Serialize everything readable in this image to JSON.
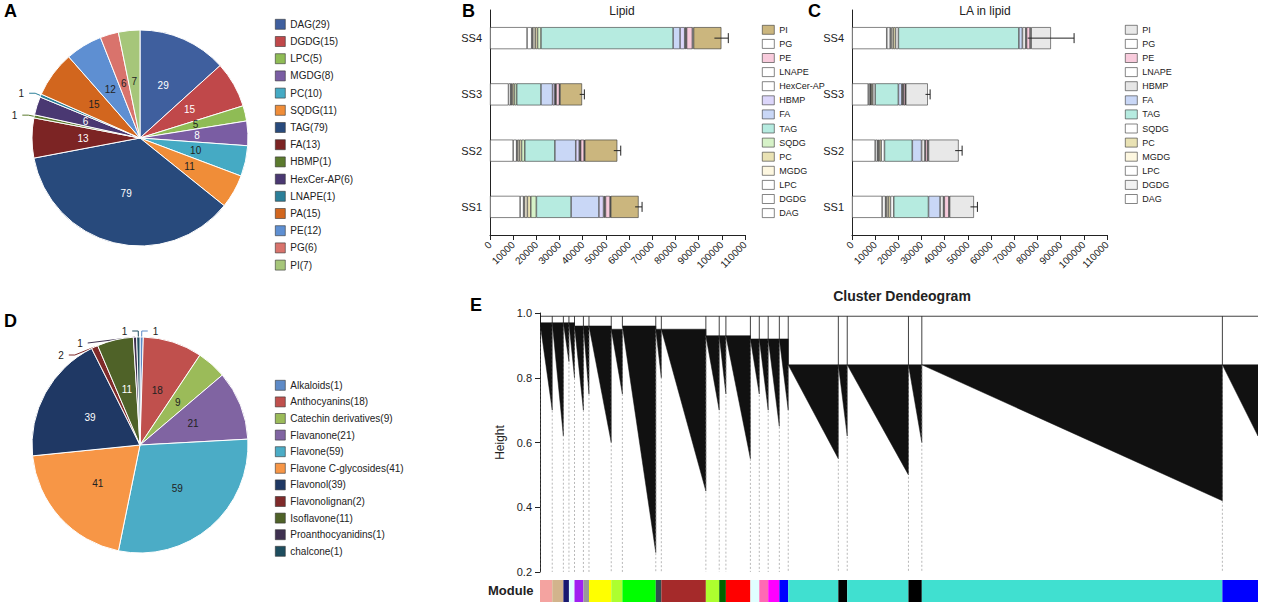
{
  "chart_data": [
    {
      "type": "pie",
      "panel_label": "A",
      "categories": [
        "DAG(29)",
        "DGDG(15)",
        "LPC(5)",
        "MGDG(8)",
        "PC(10)",
        "SQDG(11)",
        "TAG(79)",
        "FA(13)",
        "HBMP(1)",
        "HexCer-AP(6)",
        "LNAPE(1)",
        "PA(15)",
        "PE(12)",
        "PG(6)",
        "PI(7)"
      ],
      "values": [
        29,
        15,
        5,
        8,
        10,
        11,
        79,
        13,
        1,
        6,
        1,
        15,
        12,
        6,
        7
      ],
      "colors": [
        "#3f5f9e",
        "#c0484a",
        "#8fbc55",
        "#7a5da3",
        "#45aac4",
        "#f08d38",
        "#284a7c",
        "#7c2424",
        "#5b7a2e",
        "#4a3872",
        "#2b7f99",
        "#d2661e",
        "#5e8fd2",
        "#d9736c",
        "#a6c67a"
      ],
      "data_labels": true,
      "legend": "right"
    },
    {
      "type": "bar",
      "panel_label": "B",
      "title": "Lipid",
      "orientation": "horizontal",
      "stacked": true,
      "grid": false,
      "legend": "right",
      "categories": [
        "SS1",
        "SS2",
        "SS3",
        "SS4"
      ],
      "series": [
        {
          "name": "DAG",
          "color": "#ffffff",
          "values": [
            13000,
            10000,
            8000,
            16000
          ]
        },
        {
          "name": "DGDG",
          "color": "#ffffff",
          "values": [
            1500,
            1500,
            1000,
            2000
          ]
        },
        {
          "name": "LPC",
          "color": "#ffffff",
          "values": [
            400,
            300,
            200,
            500
          ]
        },
        {
          "name": "MGDG",
          "color": "#fdf7e0",
          "values": [
            1200,
            800,
            500,
            1000
          ]
        },
        {
          "name": "PC",
          "color": "#e9e2b4",
          "values": [
            1500,
            1000,
            800,
            1000
          ]
        },
        {
          "name": "SQDG",
          "color": "#d6f2c8",
          "values": [
            2400,
            1400,
            1000,
            1500
          ]
        },
        {
          "name": "TAG",
          "color": "#b6ebe0",
          "values": [
            15000,
            13000,
            10500,
            57000
          ]
        },
        {
          "name": "FA",
          "color": "#c9d7f6",
          "values": [
            12000,
            9000,
            5000,
            3000
          ]
        },
        {
          "name": "HBMP",
          "color": "#dcd6fa",
          "values": [
            2000,
            1500,
            1000,
            2000
          ]
        },
        {
          "name": "HexCer-AP",
          "color": "#ffffff",
          "values": [
            500,
            400,
            300,
            500
          ]
        },
        {
          "name": "LNAPE",
          "color": "#ffffff",
          "values": [
            300,
            200,
            200,
            300
          ]
        },
        {
          "name": "PE",
          "color": "#f8cbdc",
          "values": [
            2000,
            1500,
            1500,
            2500
          ]
        },
        {
          "name": "PG",
          "color": "#ffffff",
          "values": [
            300,
            300,
            200,
            500
          ]
        },
        {
          "name": "PI",
          "color": "#cbb67e",
          "values": [
            12000,
            14000,
            9500,
            12000
          ]
        }
      ],
      "errors": [
        1500,
        1500,
        1000,
        3000
      ],
      "xlim": [
        0,
        110000
      ],
      "xticks": [
        0,
        10000,
        20000,
        30000,
        40000,
        50000,
        60000,
        70000,
        80000,
        90000,
        100000,
        110000
      ]
    },
    {
      "type": "bar",
      "panel_label": "C",
      "title": "LA in lipid",
      "orientation": "horizontal",
      "stacked": true,
      "grid": false,
      "legend": "right",
      "categories": [
        "SS1",
        "SS2",
        "SS3",
        "SS4"
      ],
      "series": [
        {
          "name": "DAG",
          "color": "#ffffff",
          "values": [
            13000,
            10000,
            7000,
            15000
          ]
        },
        {
          "name": "DGDG",
          "color": "#f2f2f2",
          "values": [
            1500,
            1000,
            800,
            1500
          ]
        },
        {
          "name": "LPC",
          "color": "#ffffff",
          "values": [
            300,
            300,
            200,
            500
          ]
        },
        {
          "name": "MGDG",
          "color": "#fdf7e0",
          "values": [
            800,
            500,
            300,
            800
          ]
        },
        {
          "name": "PC",
          "color": "#e9e2b4",
          "values": [
            1000,
            800,
            700,
            1000
          ]
        },
        {
          "name": "SQDG",
          "color": "#ffffff",
          "values": [
            1400,
            1400,
            1000,
            1200
          ]
        },
        {
          "name": "TAG",
          "color": "#b6ebe0",
          "values": [
            15000,
            12000,
            10000,
            52000
          ]
        },
        {
          "name": "FA",
          "color": "#c9d7f6",
          "values": [
            5000,
            4000,
            1500,
            1500
          ]
        },
        {
          "name": "HBMP",
          "color": "#e6e6e6",
          "values": [
            1500,
            1500,
            500,
            1500
          ]
        },
        {
          "name": "LNAPE",
          "color": "#ffffff",
          "values": [
            300,
            200,
            200,
            300
          ]
        },
        {
          "name": "PE",
          "color": "#f8cbdc",
          "values": [
            2000,
            1000,
            800,
            1500
          ]
        },
        {
          "name": "PG",
          "color": "#ffffff",
          "values": [
            300,
            300,
            200,
            500
          ]
        },
        {
          "name": "PI",
          "color": "#e8e8e8",
          "values": [
            10500,
            13000,
            9500,
            8500
          ]
        }
      ],
      "errors": [
        1500,
        1500,
        1000,
        10000
      ],
      "xlim": [
        0,
        110000
      ],
      "xticks": [
        0,
        10000,
        20000,
        30000,
        40000,
        50000,
        60000,
        70000,
        80000,
        90000,
        100000,
        110000
      ]
    },
    {
      "type": "pie",
      "panel_label": "D",
      "categories": [
        "Alkaloids(1)",
        "Anthocyanins(18)",
        "Catechin derivatives(9)",
        "Flavanone(21)",
        "Flavone(59)",
        "Flavone C-glycosides(41)",
        "Flavonol(39)",
        "Flavonolignan(2)",
        "Isoflavone(11)",
        "Proanthocyanidins(1)",
        "chalcone(1)"
      ],
      "values": [
        1,
        18,
        9,
        21,
        59,
        41,
        39,
        2,
        11,
        1,
        1
      ],
      "colors": [
        "#5d8ac7",
        "#c0504d",
        "#9bbb59",
        "#8064a2",
        "#4bacc6",
        "#f79646",
        "#1f3864",
        "#7f2a2a",
        "#4f6228",
        "#3f3151",
        "#1d4d5e"
      ],
      "data_labels": true,
      "legend": "right"
    },
    {
      "type": "dendrogram",
      "panel_label": "E",
      "title": "Cluster Dendeogram",
      "y_label": "Height",
      "module_label": "Module",
      "ylim": [
        0.2,
        1.0
      ],
      "yticks": [
        0.2,
        0.4,
        0.6,
        0.8,
        {
          "value": 1,
          "label": "1.0"
        }
      ],
      "tick_labels": "y",
      "grid": false,
      "root_height": 0.99,
      "modules": [
        {
          "color": "#f4a3a0",
          "size": 11,
          "top": 0.97,
          "bottom": 0.7
        },
        {
          "color": "#d2b48c",
          "size": 10,
          "top": 0.97,
          "bottom": 0.62
        },
        {
          "color": "#191970",
          "size": 5,
          "top": 0.97,
          "bottom": 0.85
        },
        {
          "color": "#e0ffff",
          "size": 5,
          "top": 0.97,
          "bottom": 0.8
        },
        {
          "color": "#a020f0",
          "size": 8,
          "top": 0.96,
          "bottom": 0.7
        },
        {
          "color": "#999999",
          "size": 5,
          "top": 0.96,
          "bottom": 0.75
        },
        {
          "color": "#ffff00",
          "size": 20,
          "top": 0.96,
          "bottom": 0.6
        },
        {
          "color": "#adff2f",
          "size": 10,
          "top": 0.95,
          "bottom": 0.75
        },
        {
          "color": "#00ff00",
          "size": 30,
          "top": 0.96,
          "bottom": 0.26
        },
        {
          "color": "#2f4f4f",
          "size": 5,
          "top": 0.95,
          "bottom": 0.8
        },
        {
          "color": "#a52a2a",
          "size": 40,
          "top": 0.95,
          "bottom": 0.45
        },
        {
          "color": "#adff2f",
          "size": 12,
          "top": 0.93,
          "bottom": 0.7
        },
        {
          "color": "#006400",
          "size": 6,
          "top": 0.93,
          "bottom": 0.75
        },
        {
          "color": "#ff0000",
          "size": 22,
          "top": 0.93,
          "bottom": 0.55
        },
        {
          "color": "#e0ffff",
          "size": 8,
          "top": 0.92,
          "bottom": 0.75
        },
        {
          "color": "#ff69b4",
          "size": 8,
          "top": 0.92,
          "bottom": 0.7
        },
        {
          "color": "#ff00ff",
          "size": 10,
          "top": 0.92,
          "bottom": 0.65
        },
        {
          "color": "#0000ff",
          "size": 8,
          "top": 0.92,
          "bottom": 0.7
        },
        {
          "color": "#40e0d0",
          "size": 45,
          "top": 0.84,
          "bottom": 0.55
        },
        {
          "color": "#000000",
          "size": 8,
          "top": 0.84,
          "bottom": 0.62
        },
        {
          "color": "#40e0d0",
          "size": 55,
          "top": 0.84,
          "bottom": 0.5
        },
        {
          "color": "#000000",
          "size": 12,
          "top": 0.84,
          "bottom": 0.6
        },
        {
          "color": "#40e0d0",
          "size": 270,
          "top": 0.84,
          "bottom": 0.42
        },
        {
          "color": "#0000ff",
          "size": 32,
          "top": 0.84,
          "bottom": 0.62
        }
      ]
    }
  ]
}
